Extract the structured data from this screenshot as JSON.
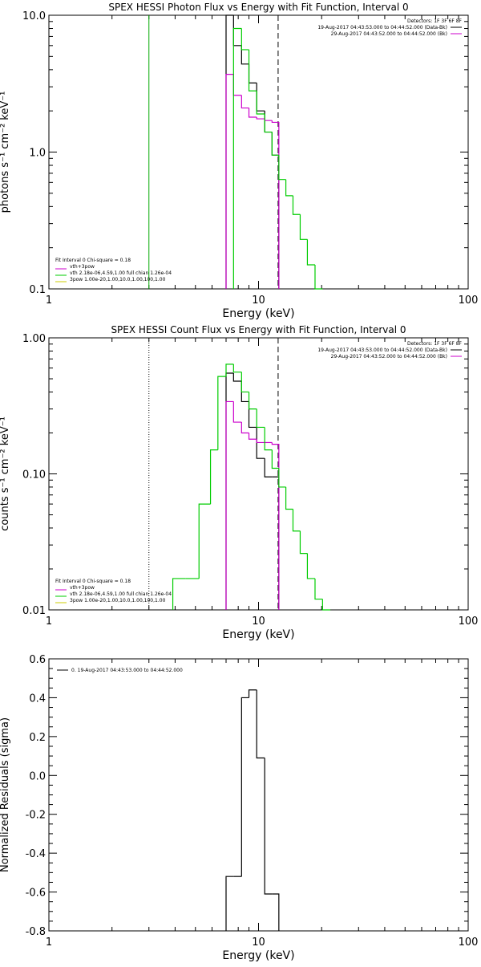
{
  "chart_data": [
    {
      "type": "line",
      "title": "SPEX HESSI Photon Flux vs Energy with Fit Function, Interval 0",
      "xlabel": "Energy (keV)",
      "ylabel": "photons s⁻¹ cm⁻² keV⁻¹",
      "x_scale": "log",
      "y_scale": "log",
      "xlim": [
        1,
        100
      ],
      "ylim": [
        0.1,
        10
      ],
      "x_ticks": [
        1,
        10,
        100
      ],
      "x_tick_labels": [
        "1",
        "10",
        "100"
      ],
      "y_ticks": [
        0.1,
        1,
        10
      ],
      "y_tick_labels": [
        "0.1",
        "1.0",
        "10.0"
      ],
      "legend_top_right": [
        {
          "text": "Detectors: 1F 3F 6F 8F",
          "color": ""
        },
        {
          "text": "19-Aug-2017 04:43:53.000 to 04:44:52.000 (Data-Bk)",
          "color": "#000000"
        },
        {
          "text": "29-Aug-2017 04:43:52.000 to 04:44:52.000 (Bk)",
          "color": "#cc00cc"
        }
      ],
      "legend_bottom_left": [
        {
          "text": "Fit Interval 0   Chi-square = 0.18",
          "color": ""
        },
        {
          "text": "vth+3pow",
          "color": "#cc00cc"
        },
        {
          "text": "vth 2.18e-06,4.59,1.00  full chian 1.26e-04",
          "color": "#00cc00"
        },
        {
          "text": "3pow 1.00e-20,1.00,10.0,1.00,100,1.00",
          "color": "#cccc00"
        }
      ],
      "vlines": [
        {
          "x": 3.0,
          "style": "solid",
          "color": "#00aa00"
        },
        {
          "x": 12.4,
          "style": "dashed",
          "color": "#000000"
        }
      ],
      "series": [
        {
          "style": "step",
          "color": "#000000",
          "edges": [
            7.0,
            7.6,
            8.3,
            9.0,
            9.8,
            10.7,
            11.6,
            12.5
          ],
          "values": [
            10.0,
            6.0,
            4.4,
            3.2,
            2.0,
            1.4,
            0.95
          ]
        },
        {
          "style": "step",
          "color": "#cc00cc",
          "edges": [
            7.0,
            7.6,
            8.3,
            9.0,
            9.8,
            10.7,
            11.6,
            12.5
          ],
          "values": [
            3.7,
            2.6,
            2.1,
            1.8,
            1.75,
            1.7,
            1.65
          ]
        },
        {
          "style": "step",
          "color": "#00cc00",
          "edges": [
            7.6,
            8.3,
            9.0,
            9.8,
            10.7,
            11.6,
            12.5,
            13.5,
            14.6,
            15.8,
            17.1,
            18.6,
            20.2
          ],
          "values": [
            8.0,
            5.6,
            2.8,
            1.9,
            1.4,
            0.95,
            0.63,
            0.48,
            0.35,
            0.23,
            0.15,
            0.1
          ]
        }
      ]
    },
    {
      "type": "line",
      "title": "SPEX HESSI Count Flux vs Energy with Fit Function, Interval 0",
      "xlabel": "Energy (keV)",
      "ylabel": "counts s⁻¹ cm⁻² keV⁻¹",
      "x_scale": "log",
      "y_scale": "log",
      "xlim": [
        1,
        100
      ],
      "ylim": [
        0.01,
        1
      ],
      "x_ticks": [
        1,
        10,
        100
      ],
      "x_tick_labels": [
        "1",
        "10",
        "100"
      ],
      "y_ticks": [
        0.01,
        0.1,
        1
      ],
      "y_tick_labels": [
        "0.01",
        "0.10",
        "1.00"
      ],
      "legend_top_right": [
        {
          "text": "Detectors: 1F 3F 6F 8F",
          "color": ""
        },
        {
          "text": "19-Aug-2017 04:43:53.000 to 04:44:52.000 (Data-Bk)",
          "color": "#000000"
        },
        {
          "text": "29-Aug-2017 04:43:52.000 to 04:44:52.000 (Bk)",
          "color": "#cc00cc"
        }
      ],
      "legend_bottom_left": [
        {
          "text": "Fit Interval 0   Chi-square = 0.18",
          "color": ""
        },
        {
          "text": "vth+3pow",
          "color": "#cc00cc"
        },
        {
          "text": "vth 2.18e-06,4.59,1.00  full chian 1.26e-04",
          "color": "#00cc00"
        },
        {
          "text": "3pow 1.00e-20,1.00,10.0,1.00,100,1.00",
          "color": "#cccc00"
        }
      ],
      "vlines": [
        {
          "x": 3.0,
          "style": "dotted",
          "color": "#000000"
        },
        {
          "x": 12.4,
          "style": "dashed",
          "color": "#000000"
        }
      ],
      "series": [
        {
          "style": "step",
          "color": "#000000",
          "edges": [
            7.0,
            7.6,
            8.3,
            9.0,
            9.8,
            10.7,
            11.6,
            12.5
          ],
          "values": [
            0.55,
            0.48,
            0.34,
            0.22,
            0.13,
            0.095,
            0.095
          ]
        },
        {
          "style": "step",
          "color": "#cc00cc",
          "edges": [
            7.0,
            7.6,
            8.3,
            9.0,
            9.8,
            10.7,
            11.6,
            12.5
          ],
          "values": [
            0.34,
            0.24,
            0.2,
            0.18,
            0.17,
            0.17,
            0.165
          ]
        },
        {
          "style": "step",
          "color": "#00cc00",
          "edges": [
            3.9,
            4.5,
            5.2,
            5.9,
            6.4,
            7.0,
            7.6,
            8.3,
            9.0,
            9.8,
            10.7,
            11.6,
            12.5,
            13.5,
            14.6,
            15.8,
            17.1,
            18.6,
            20.2,
            22.0
          ],
          "values": [
            0.017,
            0.017,
            0.06,
            0.15,
            0.52,
            0.64,
            0.56,
            0.4,
            0.3,
            0.22,
            0.15,
            0.11,
            0.08,
            0.055,
            0.038,
            0.026,
            0.017,
            0.012,
            0.01
          ]
        }
      ]
    },
    {
      "type": "line",
      "title": "",
      "xlabel": "Energy (keV)",
      "ylabel": "Normalized Residuals (sigma)",
      "x_scale": "log",
      "y_scale": "linear",
      "xlim": [
        1,
        100
      ],
      "ylim": [
        -0.8,
        0.6
      ],
      "x_ticks": [
        1,
        10,
        100
      ],
      "x_tick_labels": [
        "1",
        "10",
        "100"
      ],
      "y_ticks": [
        -0.8,
        -0.6,
        -0.4,
        -0.2,
        0.0,
        0.2,
        0.4,
        0.6
      ],
      "y_tick_labels": [
        "-0.8",
        "-0.6",
        "-0.4",
        "-0.2",
        "0.0",
        "0.2",
        "0.4",
        "0.6"
      ],
      "legend_top_left": [
        {
          "text": "0. 19-Aug-2017 04:43:53.000 to 04:44:52.000",
          "color": "#000000"
        }
      ],
      "series": [
        {
          "style": "step",
          "color": "#000000",
          "edges": [
            7.0,
            7.6,
            8.3,
            9.0,
            9.8,
            10.7,
            11.6,
            12.5
          ],
          "values": [
            -0.52,
            -0.52,
            0.4,
            0.44,
            0.09,
            -0.61,
            -0.61
          ]
        }
      ]
    }
  ]
}
